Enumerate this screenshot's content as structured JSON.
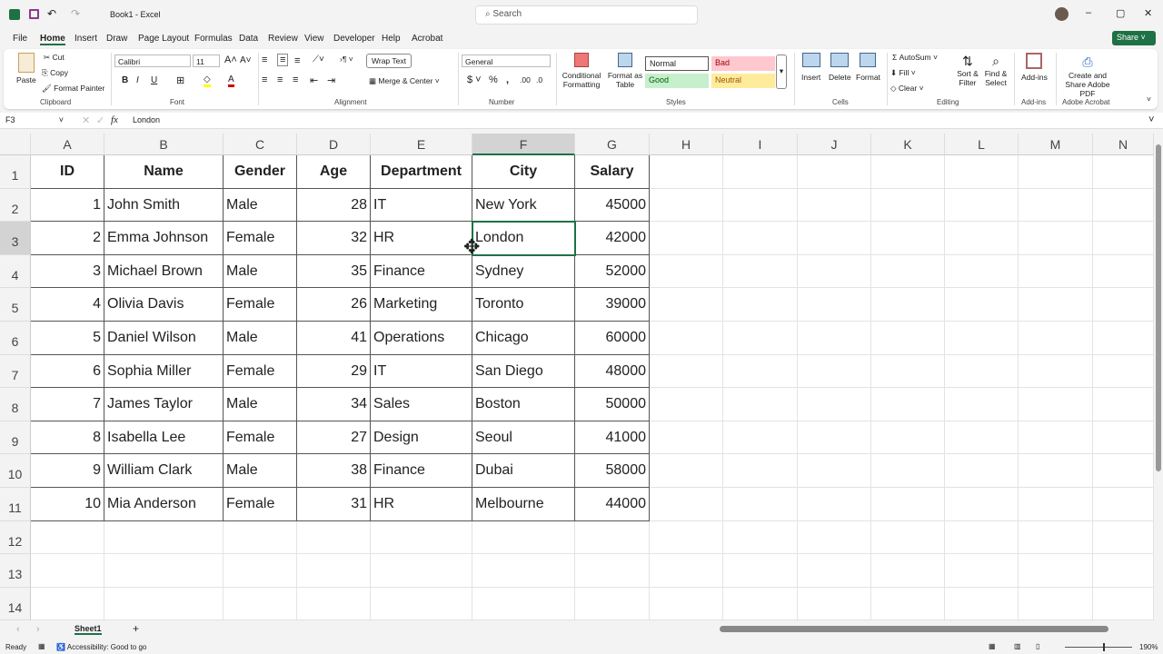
{
  "title": {
    "doc": "Book1 - Excel",
    "search": "Search"
  },
  "menu": [
    "File",
    "Home",
    "Insert",
    "Draw",
    "Page Layout",
    "Formulas",
    "Data",
    "Review",
    "View",
    "Developer",
    "Help",
    "Acrobat"
  ],
  "share": "Share",
  "ribbon": {
    "clipboard": {
      "paste": "Paste",
      "cut": "Cut",
      "copy": "Copy",
      "format_painter": "Format Painter",
      "label": "Clipboard"
    },
    "font": {
      "name": "Calibri",
      "size": "11",
      "label": "Font"
    },
    "alignment": {
      "wrap": "Wrap Text",
      "merge": "Merge & Center",
      "label": "Alignment"
    },
    "number": {
      "format": "General",
      "label": "Number"
    },
    "styles": {
      "conditional": "Conditional Formatting",
      "format_table": "Format as Table",
      "normal": "Normal",
      "bad": "Bad",
      "good": "Good",
      "neutral": "Neutral",
      "label": "Styles"
    },
    "cells": {
      "insert": "Insert",
      "delete": "Delete",
      "format": "Format",
      "label": "Cells"
    },
    "editing": {
      "autosum": "AutoSum",
      "fill": "Fill",
      "clear": "Clear",
      "sort": "Sort & Filter",
      "find": "Find & Select",
      "label": "Editing"
    },
    "addins": {
      "btn": "Add-ins",
      "label": "Add-ins"
    },
    "acrobat": {
      "btn": "Create and Share Adobe PDF",
      "label": "Adobe Acrobat"
    }
  },
  "formula_bar": {
    "name_box": "F3",
    "fx": "fx",
    "value": "London"
  },
  "columns": [
    "A",
    "B",
    "C",
    "D",
    "E",
    "F",
    "G",
    "H",
    "I",
    "J",
    "K",
    "L",
    "M",
    "N"
  ],
  "rows": [
    "1",
    "2",
    "3",
    "4",
    "5",
    "6",
    "7",
    "8",
    "9",
    "10",
    "11",
    "12",
    "13",
    "14"
  ],
  "table": {
    "headers": [
      "ID",
      "Name",
      "Gender",
      "Age",
      "Department",
      "City",
      "Salary"
    ],
    "rows": [
      [
        "1",
        "John Smith",
        "Male",
        "28",
        "IT",
        "New York",
        "45000"
      ],
      [
        "2",
        "Emma Johnson",
        "Female",
        "32",
        "HR",
        "London",
        "42000"
      ],
      [
        "3",
        "Michael Brown",
        "Male",
        "35",
        "Finance",
        "Sydney",
        "52000"
      ],
      [
        "4",
        "Olivia Davis",
        "Female",
        "26",
        "Marketing",
        "Toronto",
        "39000"
      ],
      [
        "5",
        "Daniel Wilson",
        "Male",
        "41",
        "Operations",
        "Chicago",
        "60000"
      ],
      [
        "6",
        "Sophia Miller",
        "Female",
        "29",
        "IT",
        "San Diego",
        "48000"
      ],
      [
        "7",
        "James Taylor",
        "Male",
        "34",
        "Sales",
        "Boston",
        "50000"
      ],
      [
        "8",
        "Isabella Lee",
        "Female",
        "27",
        "Design",
        "Seoul",
        "41000"
      ],
      [
        "9",
        "William Clark",
        "Male",
        "38",
        "Finance",
        "Dubai",
        "58000"
      ],
      [
        "10",
        "Mia Anderson",
        "Female",
        "31",
        "HR",
        "Melbourne",
        "44000"
      ]
    ]
  },
  "selected_cell": "F3",
  "sheet_tab": "Sheet1",
  "status": {
    "ready": "Ready",
    "accessibility": "Accessibility: Good to go",
    "zoom": "190%"
  },
  "colors": {
    "accent": "#1e7145",
    "bad": "#ffc7ce",
    "good": "#c6efce",
    "neutral": "#ffeb9c"
  }
}
